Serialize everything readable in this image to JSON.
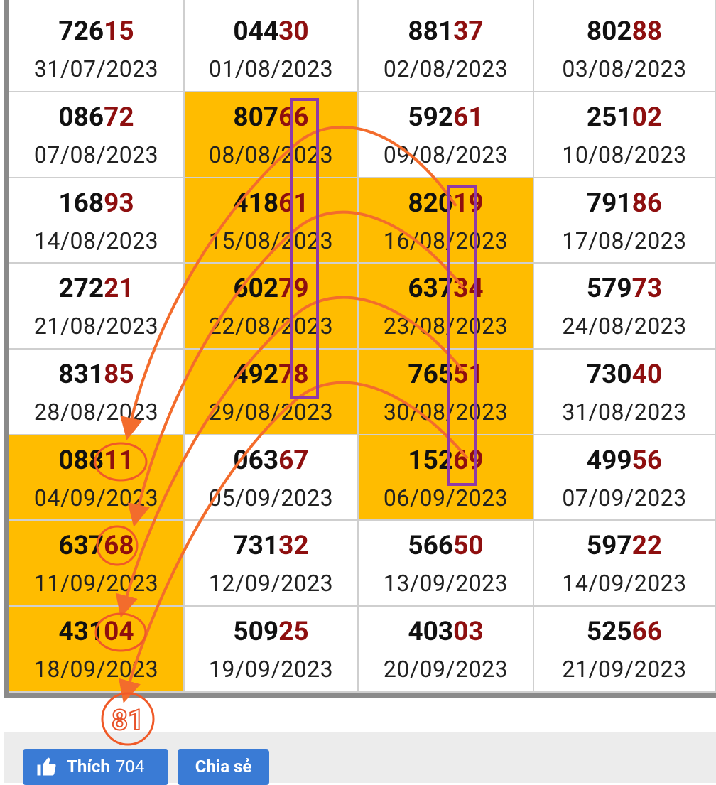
{
  "table": {
    "rows": [
      [
        {
          "head": "726",
          "tail": "15",
          "date": "31/07/2023",
          "highlighted": false
        },
        {
          "head": "044",
          "tail": "30",
          "date": "01/08/2023",
          "highlighted": false
        },
        {
          "head": "881",
          "tail": "37",
          "date": "02/08/2023",
          "highlighted": false
        },
        {
          "head": "802",
          "tail": "88",
          "date": "03/08/2023",
          "highlighted": false
        }
      ],
      [
        {
          "head": "086",
          "tail": "72",
          "date": "07/08/2023",
          "highlighted": false
        },
        {
          "head": "807",
          "tail": "66",
          "date": "08/08/2023",
          "highlighted": true
        },
        {
          "head": "592",
          "tail": "61",
          "date": "09/08/2023",
          "highlighted": false
        },
        {
          "head": "251",
          "tail": "02",
          "date": "10/08/2023",
          "highlighted": false
        }
      ],
      [
        {
          "head": "168",
          "tail": "93",
          "date": "14/08/2023",
          "highlighted": false
        },
        {
          "head": "418",
          "tail": "61",
          "date": "15/08/2023",
          "highlighted": true
        },
        {
          "head": "820",
          "tail": "19",
          "date": "16/08/2023",
          "highlighted": true
        },
        {
          "head": "791",
          "tail": "86",
          "date": "17/08/2023",
          "highlighted": false
        }
      ],
      [
        {
          "head": "272",
          "tail": "21",
          "date": "21/08/2023",
          "highlighted": false
        },
        {
          "head": "602",
          "tail": "79",
          "date": "22/08/2023",
          "highlighted": true
        },
        {
          "head": "637",
          "tail": "34",
          "date": "23/08/2023",
          "highlighted": true
        },
        {
          "head": "579",
          "tail": "73",
          "date": "24/08/2023",
          "highlighted": false
        }
      ],
      [
        {
          "head": "831",
          "tail": "85",
          "date": "28/08/2023",
          "highlighted": false
        },
        {
          "head": "492",
          "tail": "78",
          "date": "29/08/2023",
          "highlighted": true
        },
        {
          "head": "765",
          "tail": "51",
          "date": "30/08/2023",
          "highlighted": true
        },
        {
          "head": "730",
          "tail": "40",
          "date": "31/08/2023",
          "highlighted": false
        }
      ],
      [
        {
          "head": "088",
          "tail": "11",
          "date": "04/09/2023",
          "highlighted": true
        },
        {
          "head": "063",
          "tail": "67",
          "date": "05/09/2023",
          "highlighted": false
        },
        {
          "head": "152",
          "tail": "69",
          "date": "06/09/2023",
          "highlighted": true
        },
        {
          "head": "499",
          "tail": "56",
          "date": "07/09/2023",
          "highlighted": false
        }
      ],
      [
        {
          "head": "637",
          "tail": "68",
          "date": "11/09/2023",
          "highlighted": true
        },
        {
          "head": "731",
          "tail": "32",
          "date": "12/09/2023",
          "highlighted": false
        },
        {
          "head": "566",
          "tail": "50",
          "date": "13/09/2023",
          "highlighted": false
        },
        {
          "head": "597",
          "tail": "22",
          "date": "14/09/2023",
          "highlighted": false
        }
      ],
      [
        {
          "head": "431",
          "tail": "04",
          "date": "18/09/2023",
          "highlighted": true
        },
        {
          "head": "509",
          "tail": "25",
          "date": "19/09/2023",
          "highlighted": false
        },
        {
          "head": "403",
          "tail": "03",
          "date": "20/09/2023",
          "highlighted": false
        },
        {
          "head": "525",
          "tail": "66",
          "date": "21/09/2023",
          "highlighted": false
        }
      ]
    ]
  },
  "annotation": {
    "prediction": "81"
  },
  "buttons": {
    "like": {
      "label": "Thích",
      "count": "704"
    },
    "share": {
      "label": "Chia sẻ"
    }
  }
}
